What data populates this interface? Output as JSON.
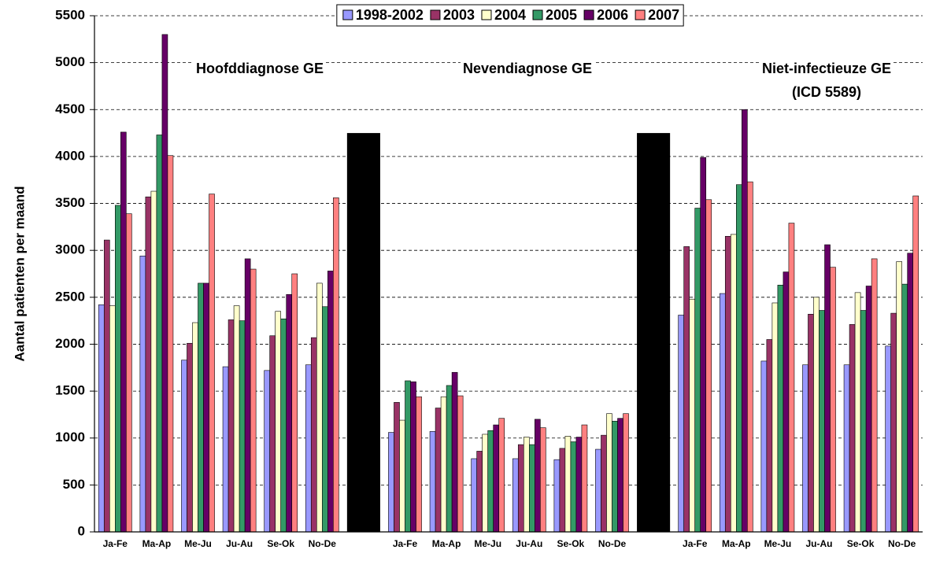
{
  "chart_data": {
    "type": "bar",
    "y_label": "Aantal patienten per maand",
    "annotations": [
      "Hoofddiagnose GE",
      "Nevendiagnose GE",
      "Niet-infectieuze GE",
      "(ICD 5589)"
    ],
    "categories": [
      "Ja-Fe",
      "Ma-Ap",
      "Me-Ju",
      "Ju-Au",
      "Se-Ok",
      "No-De",
      null,
      "Ja-Fe",
      "Ma-Ap",
      "Me-Ju",
      "Ju-Au",
      "Se-Ok",
      "No-De",
      null,
      "Ja-Fe",
      "Ma-Ap",
      "Me-Ju",
      "Ju-Au",
      "Se-Ok",
      "No-De"
    ],
    "series": [
      {
        "name": "1998-2002",
        "color": "#9999ff",
        "values": [
          2420,
          2940,
          1830,
          1760,
          1720,
          1780,
          null,
          1060,
          1070,
          780,
          780,
          770,
          880,
          null,
          2310,
          2540,
          1820,
          1780,
          1780,
          1980
        ]
      },
      {
        "name": "2003",
        "color": "#993366",
        "values": [
          3110,
          3570,
          2010,
          2260,
          2090,
          2070,
          null,
          1380,
          1320,
          860,
          930,
          890,
          1030,
          null,
          3040,
          3150,
          2050,
          2320,
          2210,
          2330
        ]
      },
      {
        "name": "2004",
        "color": "#ffffcc",
        "values": [
          2410,
          3630,
          2230,
          2410,
          2350,
          2650,
          null,
          1190,
          1440,
          1040,
          1010,
          1020,
          1260,
          null,
          2480,
          3170,
          2440,
          2500,
          2550,
          2880
        ]
      },
      {
        "name": "2005",
        "color": "#339966",
        "values": [
          3480,
          4230,
          2650,
          2250,
          2270,
          2400,
          null,
          1610,
          1560,
          1080,
          930,
          960,
          1180,
          null,
          3450,
          3700,
          2630,
          2360,
          2360,
          2640
        ]
      },
      {
        "name": "2006",
        "color": "#660066",
        "values": [
          4260,
          5300,
          2650,
          2910,
          2530,
          2780,
          null,
          1600,
          1700,
          1140,
          1200,
          1010,
          1210,
          null,
          3990,
          4500,
          2770,
          3060,
          2620,
          2970
        ]
      },
      {
        "name": "2007",
        "color": "#ff8080",
        "values": [
          3390,
          4010,
          3600,
          2800,
          2750,
          3560,
          null,
          1440,
          1450,
          1210,
          1110,
          1140,
          1260,
          null,
          3540,
          3730,
          3290,
          2820,
          2910,
          3580
        ]
      }
    ],
    "divider": {
      "color": "#000000",
      "values": [
        null,
        null,
        null,
        null,
        null,
        null,
        4250,
        null,
        null,
        null,
        null,
        null,
        null,
        4250,
        null,
        null,
        null,
        null,
        null,
        null
      ]
    },
    "ylim": [
      0,
      5500
    ],
    "yticks": [
      0,
      500,
      1000,
      1500,
      2000,
      2500,
      3000,
      3500,
      4000,
      4500,
      5000,
      5500
    ],
    "grid": true,
    "legend": "top"
  }
}
